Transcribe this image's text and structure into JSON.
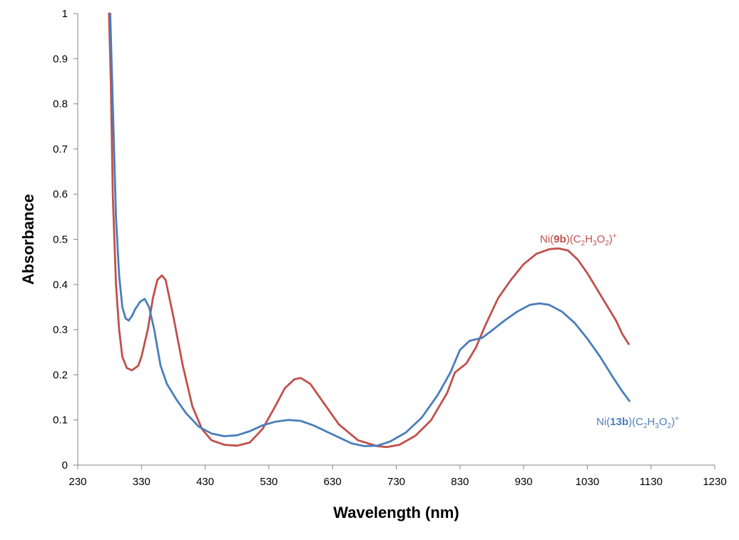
{
  "chart_data": {
    "type": "line",
    "xlabel": "Wavelength (nm)",
    "ylabel": "Absorbance",
    "xlim": [
      230,
      1230
    ],
    "ylim": [
      0,
      1
    ],
    "x_ticks": [
      "230",
      "330",
      "430",
      "530",
      "630",
      "730",
      "830",
      "930",
      "1030",
      "1130",
      "1230"
    ],
    "y_ticks": [
      "0",
      "0.1",
      "0.2",
      "0.3",
      "0.4",
      "0.5",
      "0.6",
      "0.7",
      "0.8",
      "0.9",
      "1"
    ],
    "grid": false,
    "legend": "none",
    "series": [
      {
        "name_parts": [
          "Ni(",
          "9b",
          ")(C",
          "2",
          "H",
          "3",
          "O",
          "2",
          ")",
          "+"
        ],
        "color": "#c0504d",
        "points": [
          [
            279,
            1.0
          ],
          [
            282,
            0.85
          ],
          [
            285,
            0.6
          ],
          [
            290,
            0.4
          ],
          [
            295,
            0.3
          ],
          [
            300,
            0.24
          ],
          [
            307,
            0.215
          ],
          [
            315,
            0.21
          ],
          [
            320,
            0.215
          ],
          [
            325,
            0.22
          ],
          [
            330,
            0.24
          ],
          [
            340,
            0.3
          ],
          [
            348,
            0.37
          ],
          [
            355,
            0.41
          ],
          [
            362,
            0.42
          ],
          [
            368,
            0.41
          ],
          [
            380,
            0.33
          ],
          [
            395,
            0.22
          ],
          [
            410,
            0.13
          ],
          [
            425,
            0.08
          ],
          [
            440,
            0.055
          ],
          [
            460,
            0.045
          ],
          [
            480,
            0.043
          ],
          [
            500,
            0.05
          ],
          [
            520,
            0.08
          ],
          [
            540,
            0.13
          ],
          [
            555,
            0.17
          ],
          [
            570,
            0.19
          ],
          [
            580,
            0.193
          ],
          [
            595,
            0.18
          ],
          [
            615,
            0.14
          ],
          [
            640,
            0.09
          ],
          [
            670,
            0.055
          ],
          [
            700,
            0.042
          ],
          [
            715,
            0.04
          ],
          [
            735,
            0.045
          ],
          [
            760,
            0.065
          ],
          [
            785,
            0.1
          ],
          [
            810,
            0.16
          ],
          [
            822,
            0.205
          ],
          [
            840,
            0.225
          ],
          [
            855,
            0.26
          ],
          [
            870,
            0.31
          ],
          [
            890,
            0.37
          ],
          [
            910,
            0.41
          ],
          [
            930,
            0.445
          ],
          [
            950,
            0.468
          ],
          [
            970,
            0.478
          ],
          [
            985,
            0.48
          ],
          [
            1000,
            0.475
          ],
          [
            1015,
            0.455
          ],
          [
            1030,
            0.425
          ],
          [
            1045,
            0.39
          ],
          [
            1060,
            0.355
          ],
          [
            1075,
            0.32
          ],
          [
            1085,
            0.29
          ],
          [
            1095,
            0.268
          ]
        ]
      },
      {
        "name_parts": [
          "Ni(",
          "13b",
          ")(C",
          "2",
          "H",
          "3",
          "O",
          "2",
          ")",
          "+"
        ],
        "color": "#4a7ebb",
        "points": [
          [
            281,
            1.0
          ],
          [
            285,
            0.8
          ],
          [
            290,
            0.55
          ],
          [
            295,
            0.42
          ],
          [
            300,
            0.35
          ],
          [
            305,
            0.325
          ],
          [
            310,
            0.32
          ],
          [
            315,
            0.33
          ],
          [
            320,
            0.345
          ],
          [
            328,
            0.362
          ],
          [
            335,
            0.368
          ],
          [
            342,
            0.35
          ],
          [
            350,
            0.3
          ],
          [
            360,
            0.22
          ],
          [
            370,
            0.18
          ],
          [
            385,
            0.145
          ],
          [
            400,
            0.115
          ],
          [
            420,
            0.085
          ],
          [
            440,
            0.07
          ],
          [
            460,
            0.064
          ],
          [
            480,
            0.066
          ],
          [
            500,
            0.075
          ],
          [
            520,
            0.088
          ],
          [
            540,
            0.096
          ],
          [
            560,
            0.1
          ],
          [
            580,
            0.098
          ],
          [
            600,
            0.088
          ],
          [
            630,
            0.068
          ],
          [
            660,
            0.048
          ],
          [
            680,
            0.042
          ],
          [
            700,
            0.043
          ],
          [
            720,
            0.052
          ],
          [
            745,
            0.072
          ],
          [
            770,
            0.105
          ],
          [
            795,
            0.155
          ],
          [
            815,
            0.205
          ],
          [
            830,
            0.255
          ],
          [
            845,
            0.275
          ],
          [
            865,
            0.282
          ],
          [
            880,
            0.298
          ],
          [
            900,
            0.32
          ],
          [
            920,
            0.34
          ],
          [
            940,
            0.355
          ],
          [
            955,
            0.358
          ],
          [
            970,
            0.355
          ],
          [
            990,
            0.34
          ],
          [
            1010,
            0.315
          ],
          [
            1030,
            0.28
          ],
          [
            1050,
            0.24
          ],
          [
            1070,
            0.195
          ],
          [
            1085,
            0.163
          ],
          [
            1096,
            0.142
          ]
        ]
      }
    ]
  }
}
